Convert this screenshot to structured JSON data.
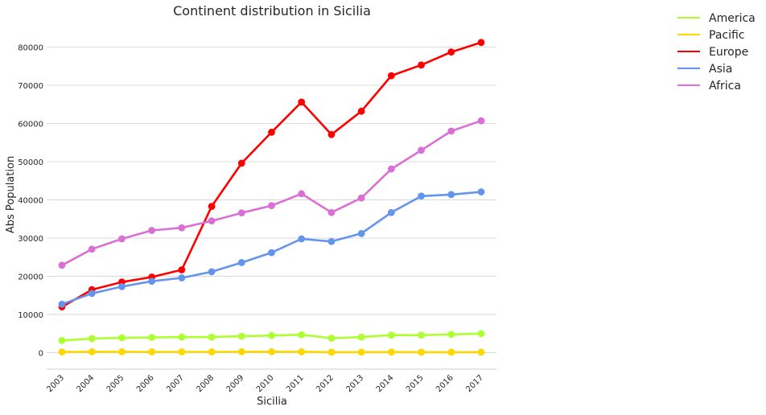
{
  "chart_data": {
    "type": "line",
    "title": "Continent distribution in Sicilia",
    "xlabel": "Sicilia",
    "ylabel": "Abs Population",
    "categories": [
      "2003",
      "2004",
      "2005",
      "2006",
      "2007",
      "2008",
      "2009",
      "2010",
      "2011",
      "2012",
      "2013",
      "2014",
      "2015",
      "2016",
      "2017"
    ],
    "y_ticks": [
      0,
      10000,
      20000,
      30000,
      40000,
      50000,
      60000,
      70000,
      80000
    ],
    "ylim": [
      -4300,
      86000
    ],
    "grid": "horizontal",
    "legend_placement": "top-right outside",
    "series": [
      {
        "name": "America",
        "color": "#adff2f",
        "values": [
          3200,
          3700,
          3900,
          4000,
          4100,
          4100,
          4300,
          4500,
          4700,
          3800,
          4100,
          4600,
          4600,
          4800,
          5000
        ]
      },
      {
        "name": "Pacific",
        "color": "#ffd700",
        "values": [
          200,
          250,
          250,
          220,
          230,
          220,
          250,
          250,
          240,
          150,
          150,
          180,
          150,
          150,
          150
        ]
      },
      {
        "name": "Europe",
        "color": "#ff0000",
        "values": [
          12000,
          16500,
          18500,
          19800,
          21700,
          38300,
          49600,
          57700,
          65600,
          57100,
          63200,
          72500,
          75300,
          78700,
          81200
        ]
      },
      {
        "name": "Asia",
        "color": "#6495ed",
        "values": [
          12700,
          15500,
          17300,
          18700,
          19600,
          21200,
          23600,
          26200,
          29800,
          29100,
          31200,
          36700,
          41000,
          41400,
          42100
        ]
      },
      {
        "name": "Africa",
        "color": "#da70d6",
        "values": [
          22900,
          27100,
          29800,
          32000,
          32700,
          34500,
          36600,
          38500,
          41600,
          36700,
          40500,
          48100,
          53000,
          58000,
          60700
        ]
      }
    ]
  }
}
